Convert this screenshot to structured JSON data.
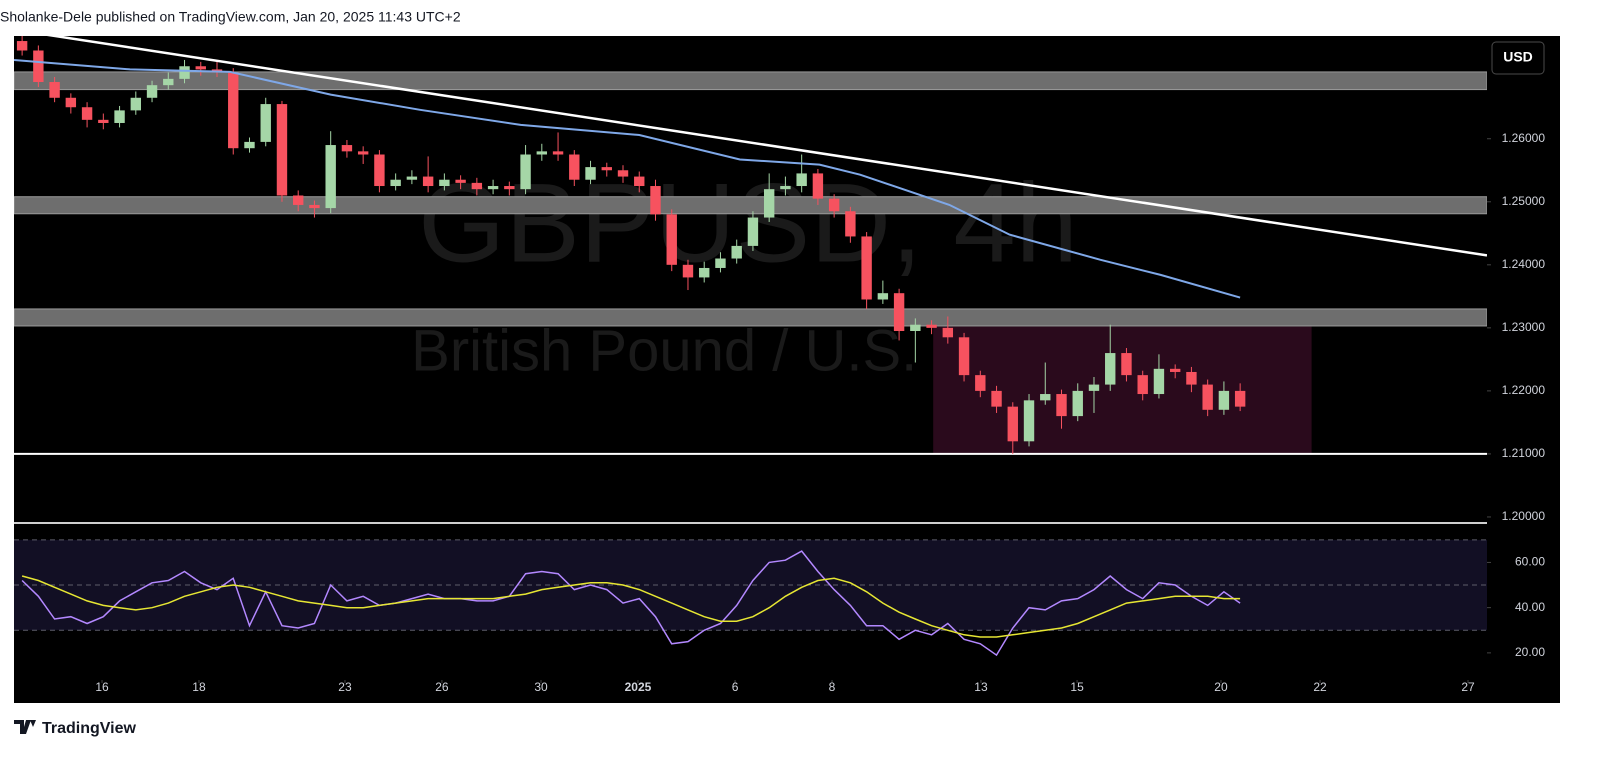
{
  "header": {
    "text": "Sholanke-Dele published on TradingView.com, Jan 20, 2025 11:43 UTC+2"
  },
  "footer": {
    "brand": "TradingView"
  },
  "currency_button": "USD",
  "chart_data": [
    {
      "type": "candlestick",
      "watermark": {
        "symbol": "GBPUSD, 4h",
        "description": "British Pound / U.S. Dollar"
      },
      "up_color": "#a5d6a7",
      "down_color": "#f7525f",
      "open": [
        1.2755,
        1.274,
        1.269,
        1.2665,
        1.265,
        1.263,
        1.2625,
        1.2645,
        1.2665,
        1.2685,
        1.2695,
        1.2715,
        1.271,
        1.2705,
        1.2585,
        1.2595,
        1.2655,
        1.251,
        1.2495,
        1.249,
        1.259,
        1.258,
        1.2575,
        1.2525,
        1.2535,
        1.254,
        1.2525,
        1.2535,
        1.253,
        1.252,
        1.2525,
        1.252,
        1.2575,
        1.258,
        1.2575,
        1.2535,
        1.2555,
        1.255,
        1.254,
        1.2525,
        1.248,
        1.24,
        1.238,
        1.2395,
        1.241,
        1.243,
        1.2475,
        1.252,
        1.2525,
        1.2545,
        1.2505,
        1.2485,
        1.2445,
        1.2345,
        1.2355,
        1.2295,
        1.2305,
        1.23,
        1.2285,
        1.2225,
        1.22,
        1.2175,
        1.212,
        1.2185,
        1.2195,
        1.216,
        1.22,
        1.221,
        1.226,
        1.2225,
        1.2195,
        1.2235,
        1.223,
        1.221,
        1.217,
        1.22
      ],
      "high": [
        1.2763,
        1.2748,
        1.2698,
        1.2672,
        1.2658,
        1.264,
        1.2652,
        1.2675,
        1.2692,
        1.2705,
        1.2725,
        1.2722,
        1.2725,
        1.2712,
        1.2602,
        1.2665,
        1.266,
        1.2518,
        1.2502,
        1.2612,
        1.2598,
        1.2588,
        1.2582,
        1.2545,
        1.255,
        1.2572,
        1.2545,
        1.2542,
        1.2538,
        1.2535,
        1.2532,
        1.259,
        1.2592,
        1.261,
        1.2582,
        1.2565,
        1.2562,
        1.2558,
        1.2548,
        1.2535,
        1.2488,
        1.2408,
        1.2405,
        1.242,
        1.244,
        1.2485,
        1.2545,
        1.254,
        1.2575,
        1.2552,
        1.2512,
        1.2492,
        1.2452,
        1.2375,
        1.2362,
        1.2315,
        1.2312,
        1.2318,
        1.2292,
        1.2232,
        1.2208,
        1.2182,
        1.2195,
        1.2245,
        1.2202,
        1.2212,
        1.2222,
        1.2305,
        1.2268,
        1.2232,
        1.2258,
        1.2242,
        1.2238,
        1.2218,
        1.2215,
        1.2212
      ],
      "low": [
        1.2732,
        1.2682,
        1.2658,
        1.264,
        1.2618,
        1.2615,
        1.2618,
        1.2638,
        1.2658,
        1.2678,
        1.2688,
        1.27,
        1.2698,
        1.2575,
        1.2578,
        1.2588,
        1.25,
        1.2485,
        1.2475,
        1.2482,
        1.257,
        1.256,
        1.2515,
        1.2518,
        1.2528,
        1.2515,
        1.2518,
        1.252,
        1.251,
        1.2512,
        1.251,
        1.2512,
        1.2565,
        1.2565,
        1.2525,
        1.2528,
        1.254,
        1.253,
        1.2515,
        1.247,
        1.239,
        1.236,
        1.2372,
        1.2388,
        1.2402,
        1.2422,
        1.2468,
        1.251,
        1.2515,
        1.2495,
        1.2475,
        1.2435,
        1.233,
        1.2338,
        1.228,
        1.2245,
        1.229,
        1.2275,
        1.2215,
        1.219,
        1.2165,
        1.21,
        1.2112,
        1.2178,
        1.214,
        1.2152,
        1.2165,
        1.22,
        1.2215,
        1.2185,
        1.2188,
        1.222,
        1.2198,
        1.216,
        1.2162,
        1.2168
      ],
      "close": [
        1.274,
        1.269,
        1.2665,
        1.265,
        1.263,
        1.2625,
        1.2645,
        1.2665,
        1.2685,
        1.2695,
        1.2715,
        1.271,
        1.2705,
        1.2585,
        1.2595,
        1.2655,
        1.251,
        1.2495,
        1.249,
        1.259,
        1.258,
        1.2575,
        1.2525,
        1.2535,
        1.254,
        1.2525,
        1.2535,
        1.253,
        1.252,
        1.2525,
        1.252,
        1.2575,
        1.258,
        1.2575,
        1.2535,
        1.2555,
        1.255,
        1.254,
        1.2525,
        1.248,
        1.24,
        1.238,
        1.2395,
        1.241,
        1.243,
        1.2475,
        1.252,
        1.2525,
        1.2545,
        1.2505,
        1.2485,
        1.2445,
        1.2345,
        1.2355,
        1.2295,
        1.2305,
        1.23,
        1.2285,
        1.2225,
        1.22,
        1.2175,
        1.212,
        1.2185,
        1.2195,
        1.216,
        1.22,
        1.221,
        1.226,
        1.2225,
        1.2195,
        1.2235,
        1.223,
        1.221,
        1.217,
        1.22,
        1.2175
      ],
      "trendline": {
        "x": [
          0,
          90.7
        ],
        "values": [
          1.2773,
          1.2415
        ],
        "color": "#ffffff"
      },
      "moving_average": {
        "x": [
          0,
          7.14,
          13.3,
          19.5,
          25.0,
          31.2,
          38.5,
          44.7,
          49.6,
          52.1,
          57.6,
          61.3,
          66.9,
          70.6,
          75.5
        ],
        "values": [
          1.2725,
          1.271,
          1.2706,
          1.267,
          1.2646,
          1.2622,
          1.2606,
          1.2567,
          1.2559,
          1.2543,
          1.2495,
          1.2448,
          1.2408,
          1.2384,
          1.2348
        ],
        "color": "#7fa8e8"
      },
      "zones": [
        {
          "y": [
            1.2678,
            1.2706
          ]
        },
        {
          "y": [
            1.2481,
            1.2508
          ]
        },
        {
          "y": [
            1.2303,
            1.233
          ]
        }
      ],
      "zone_color": "#6e6e6e",
      "support": 1.21,
      "range_box": {
        "x": [
          56.6,
          79.9
        ],
        "y": [
          1.21,
          1.2302
        ],
        "color": "#2a0a1c"
      },
      "xlim": [
        0,
        90.7
      ],
      "xticks": [
        {
          "value": 5.42,
          "label": "16"
        },
        {
          "value": 11.39,
          "label": "18"
        },
        {
          "value": 20.38,
          "label": "23"
        },
        {
          "value": 26.35,
          "label": "26"
        },
        {
          "value": 32.45,
          "label": "30"
        },
        {
          "value": 38.42,
          "label": "2025"
        },
        {
          "value": 44.4,
          "label": "6"
        },
        {
          "value": 50.37,
          "label": "8"
        },
        {
          "value": 59.54,
          "label": "13"
        },
        {
          "value": 65.46,
          "label": "15"
        },
        {
          "value": 74.32,
          "label": "20"
        },
        {
          "value": 80.42,
          "label": "22"
        },
        {
          "value": 89.53,
          "label": "27"
        }
      ],
      "ylim": [
        1.1992,
        1.2763
      ],
      "yticks": [
        {
          "value": 1.2,
          "label": "1.20000"
        },
        {
          "value": 1.21,
          "label": "1.21000"
        },
        {
          "value": 1.22,
          "label": "1.22000"
        },
        {
          "value": 1.23,
          "label": "1.23000"
        },
        {
          "value": 1.24,
          "label": "1.24000"
        },
        {
          "value": 1.25,
          "label": "1.25000"
        },
        {
          "value": 1.26,
          "label": "1.26000"
        }
      ]
    },
    {
      "type": "line",
      "series": [
        {
          "color": "#b388ff",
          "values": [
            52,
            45,
            35,
            36,
            33,
            36,
            43,
            47,
            51,
            52,
            56,
            51,
            48,
            53,
            32,
            47,
            32,
            31,
            33,
            50,
            43,
            45,
            41,
            42,
            44,
            46,
            44,
            44,
            43,
            43,
            45,
            55,
            56,
            55,
            48,
            50,
            48,
            42,
            44,
            36,
            24,
            25,
            30,
            33,
            41,
            52,
            60,
            61,
            65,
            56,
            48,
            41,
            32,
            32,
            26,
            30,
            28,
            33,
            26,
            24,
            19,
            31,
            40,
            39,
            43,
            44,
            48,
            54,
            48,
            44,
            51,
            50,
            45,
            41,
            47,
            42
          ]
        },
        {
          "color": "#e6e633",
          "values": [
            54,
            52,
            49,
            46,
            43,
            41,
            40,
            39,
            40,
            42,
            45,
            47,
            49,
            50,
            49,
            47,
            45,
            43,
            42,
            41,
            40,
            40,
            41,
            42,
            43,
            44,
            44,
            44,
            44,
            44,
            45,
            46,
            48,
            49,
            50,
            51,
            51,
            50,
            48,
            45,
            42,
            39,
            36,
            34,
            34,
            36,
            40,
            45,
            49,
            52,
            53,
            51,
            47,
            42,
            38,
            35,
            32,
            30,
            28,
            27,
            27,
            28,
            29,
            30,
            31,
            33,
            36,
            39,
            42,
            43,
            44,
            45,
            45,
            45,
            44,
            44
          ]
        }
      ],
      "bands": [
        30,
        50,
        70
      ],
      "band_fill": "#120f24",
      "ylim": [
        8,
        77
      ],
      "yticks": [
        {
          "value": 20,
          "label": "20.00"
        },
        {
          "value": 40,
          "label": "40.00"
        },
        {
          "value": 60,
          "label": "60.00"
        }
      ]
    }
  ]
}
